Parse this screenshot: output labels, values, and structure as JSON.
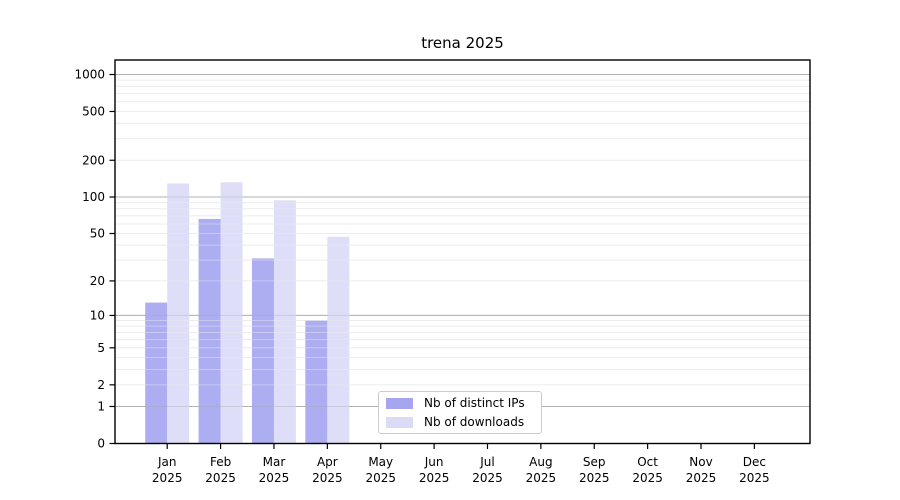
{
  "chart_data": {
    "type": "bar",
    "title": "trena 2025",
    "categories": [
      "Jan",
      "Feb",
      "Mar",
      "Apr",
      "May",
      "Jun",
      "Jul",
      "Aug",
      "Sep",
      "Oct",
      "Nov",
      "Dec"
    ],
    "category_year": "2025",
    "series": [
      {
        "name": "Nb of distinct IPs",
        "color": "#a6a6f0",
        "values": [
          13,
          66,
          31,
          9,
          0,
          0,
          0,
          0,
          0,
          0,
          0,
          0
        ]
      },
      {
        "name": "Nb of downloads",
        "color": "#dbdbf8",
        "values": [
          129,
          132,
          94,
          47,
          0,
          0,
          0,
          0,
          0,
          0,
          0,
          0
        ]
      }
    ],
    "y_ticks": [
      0,
      1,
      2,
      5,
      10,
      20,
      50,
      100,
      200,
      500,
      1000
    ],
    "y_minor_ticks": [
      2,
      3,
      4,
      5,
      6,
      7,
      8,
      9,
      20,
      30,
      40,
      50,
      60,
      70,
      80,
      90,
      200,
      300,
      400,
      500,
      600,
      700,
      800,
      900
    ],
    "y_scale": "log1p",
    "ylim": [
      0,
      1000
    ],
    "grid": true,
    "legend_position": "lower-center",
    "colors": {
      "major_grid": "#b3b3b3",
      "minor_grid": "#ededed",
      "axis": "#000000",
      "text": "#000000",
      "background": "#ffffff",
      "legend_border": "#cccccc"
    }
  }
}
